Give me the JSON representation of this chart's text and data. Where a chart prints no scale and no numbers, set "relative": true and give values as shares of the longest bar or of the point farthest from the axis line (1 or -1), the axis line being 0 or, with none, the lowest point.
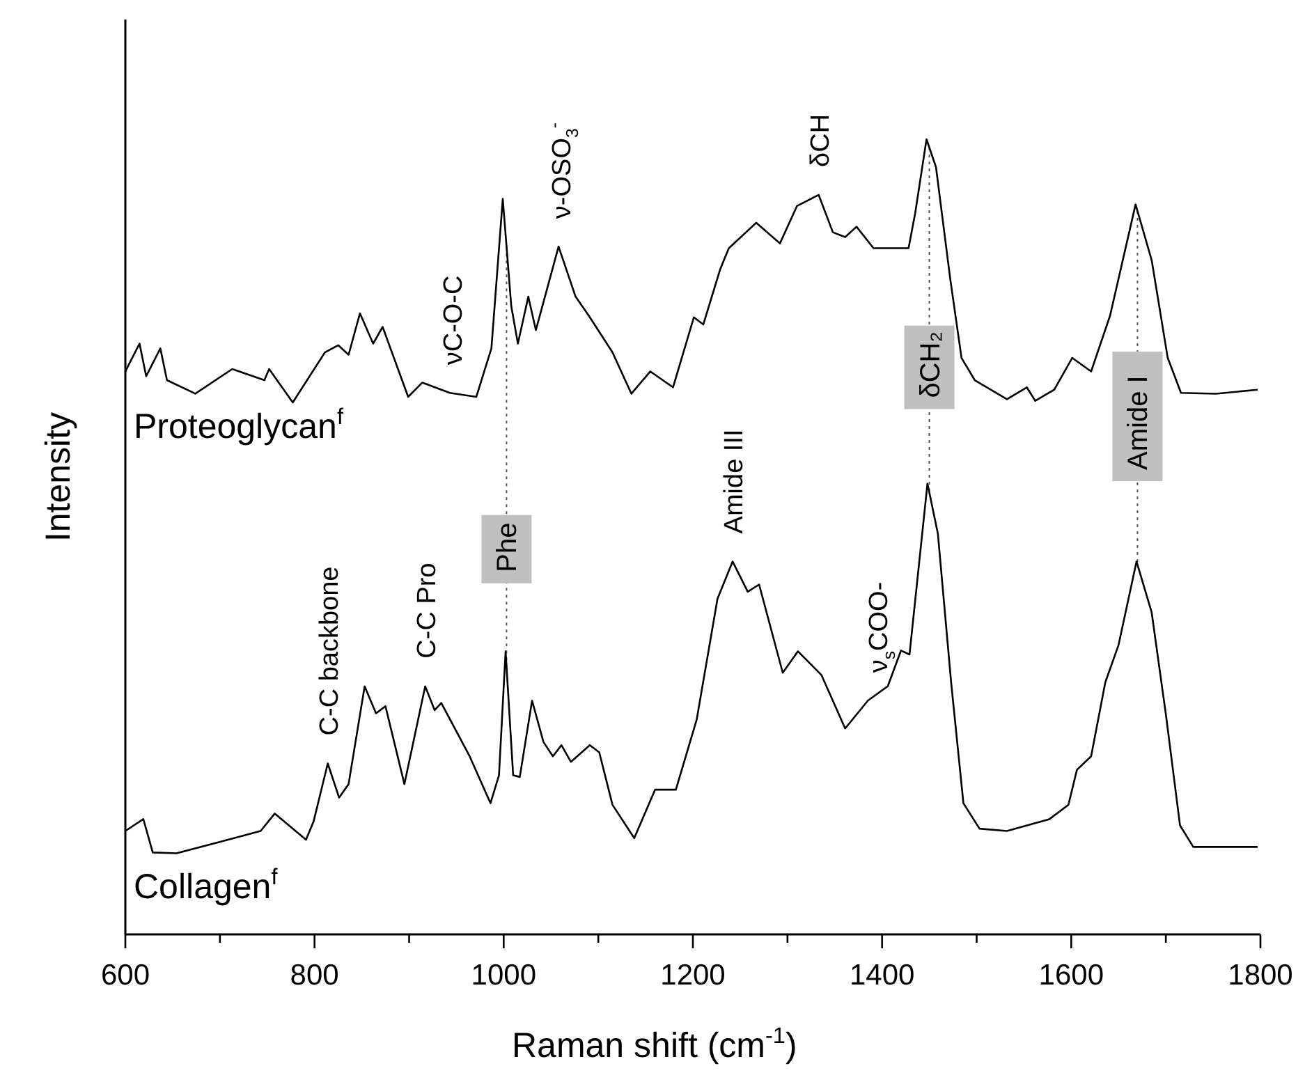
{
  "chart_data": {
    "type": "line",
    "relative": true,
    "xlabel": "Raman shift (cm$^{-1}$)",
    "ylabel": "Intensity",
    "xlim": [
      600,
      1800
    ],
    "xticks": [
      600,
      {
        "value": 700,
        "label": null
      },
      800,
      {
        "value": 900,
        "label": null
      },
      1000,
      {
        "value": 1100,
        "label": null
      },
      1200,
      {
        "value": 1300,
        "label": null
      },
      1400,
      {
        "value": 1500,
        "label": null
      },
      1600,
      {
        "value": 1700,
        "label": null
      },
      1800
    ],
    "marker": "none",
    "line_style": "solid",
    "series": [
      {
        "name": "Proteoglycan$^{f}$",
        "color": "#000000",
        "x": [
          600,
          615,
          622,
          637,
          644,
          674,
          713,
          747,
          752,
          777,
          811,
          825,
          836,
          848,
          862,
          872,
          899,
          914,
          943,
          971,
          987,
          999,
          1008,
          1015,
          1026,
          1034,
          1058,
          1076,
          1090,
          1115,
          1135,
          1155,
          1179,
          1201,
          1211,
          1229,
          1238,
          1267,
          1292,
          1310,
          1333,
          1348,
          1361,
          1373,
          1391,
          1428,
          1435,
          1447,
          1457,
          1472,
          1484,
          1498,
          1532,
          1553,
          1562,
          1582,
          1601,
          1621,
          1641,
          1668,
          1685,
          1702,
          1716,
          1753,
          1797
        ],
        "values": [
          0.708,
          0.743,
          0.702,
          0.737,
          0.697,
          0.68,
          0.711,
          0.697,
          0.711,
          0.669,
          0.732,
          0.741,
          0.729,
          0.781,
          0.743,
          0.764,
          0.676,
          0.694,
          0.681,
          0.676,
          0.737,
          0.925,
          0.79,
          0.743,
          0.802,
          0.76,
          0.865,
          0.802,
          0.778,
          0.732,
          0.68,
          0.708,
          0.688,
          0.776,
          0.767,
          0.837,
          0.863,
          0.895,
          0.869,
          0.916,
          0.93,
          0.883,
          0.877,
          0.89,
          0.863,
          0.863,
          0.907,
          1,
          0.965,
          0.825,
          0.725,
          0.697,
          0.673,
          0.688,
          0.671,
          0.685,
          0.725,
          0.708,
          0.778,
          0.918,
          0.848,
          0.725,
          0.681,
          0.68,
          0.685
        ]
      },
      {
        "name": "Collagen$^{f}$",
        "color": "#000000",
        "x": [
          600,
          619,
          629,
          654,
          699,
          743,
          758,
          791,
          799,
          814,
          826,
          836,
          853,
          865,
          875,
          895,
          917,
          927,
          934,
          964,
          986,
          995,
          1002,
          1010,
          1017,
          1030,
          1042,
          1052,
          1061,
          1071,
          1091,
          1101,
          1115,
          1138,
          1160,
          1182,
          1204,
          1226,
          1242,
          1258,
          1270,
          1295,
          1311,
          1336,
          1361,
          1385,
          1406,
          1420,
          1429,
          1448,
          1459,
          1473,
          1486,
          1503,
          1532,
          1577,
          1597,
          1606,
          1621,
          1636,
          1650,
          1669,
          1685,
          1700,
          1715,
          1729,
          1797
        ],
        "values": [
          0.13,
          0.145,
          0.103,
          0.102,
          0.116,
          0.13,
          0.152,
          0.119,
          0.142,
          0.215,
          0.172,
          0.189,
          0.312,
          0.278,
          0.287,
          0.189,
          0.312,
          0.282,
          0.291,
          0.224,
          0.165,
          0.2,
          0.356,
          0.2,
          0.198,
          0.294,
          0.242,
          0.224,
          0.238,
          0.217,
          0.238,
          0.229,
          0.163,
          0.121,
          0.182,
          0.182,
          0.27,
          0.422,
          0.469,
          0.431,
          0.44,
          0.329,
          0.356,
          0.326,
          0.259,
          0.294,
          0.312,
          0.357,
          0.352,
          0.567,
          0.504,
          0.317,
          0.165,
          0.133,
          0.13,
          0.145,
          0.163,
          0.207,
          0.224,
          0.317,
          0.364,
          0.469,
          0.405,
          0.277,
          0.137,
          0.11,
          0.11
        ]
      }
    ],
    "ref_lines": [
      {
        "axis": "x",
        "value": 1003,
        "label": "Phe",
        "color": "#555555",
        "line_style": "dotted"
      },
      {
        "axis": "x",
        "value": 1450,
        "label": "δCH₂",
        "color": "#555555",
        "line_style": "dotted"
      },
      {
        "axis": "x",
        "value": 1670,
        "label": "Amide I",
        "color": "#555555",
        "line_style": "dotted"
      }
    ],
    "annotations": [
      {
        "text": "νC-O-C",
        "x": 945,
        "y": 0.681
      },
      {
        "text": "ν-OSO$_{3}$$^{-}$",
        "x": 1060,
        "y": 0.865
      },
      {
        "text": "δCH",
        "x": 1333,
        "y": 0.93
      },
      {
        "text": "Amide III",
        "x": 1242,
        "y": 0.469
      },
      {
        "text": "ν$_{s}$COO-",
        "x": 1395,
        "y": 0.294
      },
      {
        "text": "C-C backbone",
        "x": 814,
        "y": 0.215
      },
      {
        "text": "C-C Pro",
        "x": 917,
        "y": 0.312
      }
    ]
  }
}
